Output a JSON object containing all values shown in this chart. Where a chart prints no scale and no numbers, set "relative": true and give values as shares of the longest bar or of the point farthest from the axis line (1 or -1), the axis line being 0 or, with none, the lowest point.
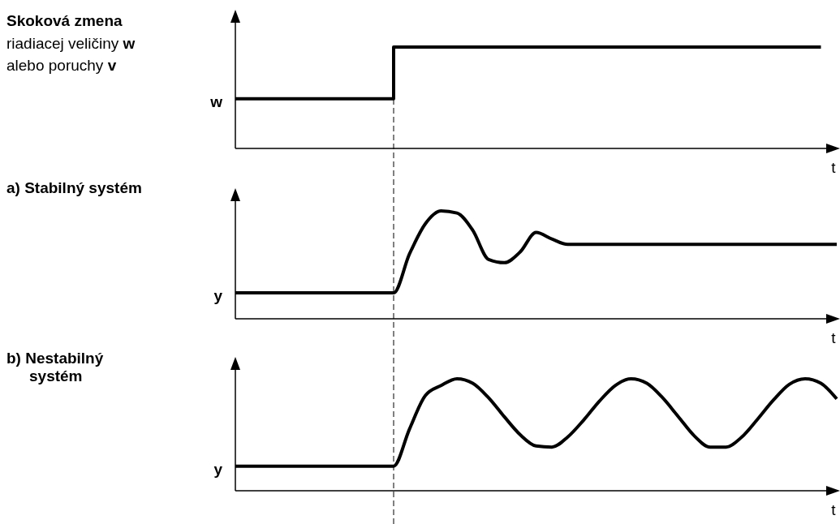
{
  "chart_data": [
    {
      "type": "step",
      "relative": true,
      "annotations": [
        "Skoková zmena"
      ],
      "subtitle": "riadiacej veličiny w alebo poruchy v",
      "ylabel": "w",
      "xlabel": "t",
      "categories": [
        null,
        null,
        null,
        null,
        null,
        null,
        null,
        null,
        null,
        null,
        null,
        null,
        null,
        null,
        null,
        null,
        null,
        null,
        null,
        null,
        null,
        null,
        null,
        null,
        null,
        null,
        null,
        null,
        null,
        null,
        null,
        null,
        null,
        null,
        null,
        null,
        null,
        null,
        null
      ],
      "series": [
        {
          "color": "#000000",
          "values": [
            0.49,
            0.49,
            0.49,
            0.49,
            0.49,
            0.49,
            0.49,
            0.49,
            0.49,
            0.49,
            0.49,
            1,
            1,
            1,
            1,
            1,
            1,
            1,
            1,
            1,
            1,
            1,
            1,
            1,
            1,
            1,
            1,
            1,
            1,
            1,
            1,
            1,
            1,
            1,
            1,
            1,
            1,
            1,
            null
          ]
        }
      ]
    },
    {
      "type": "line",
      "relative": true,
      "annotations": [
        "a)  Stabilný systém"
      ],
      "ylabel": "y",
      "xlabel": "t",
      "categories": [
        null,
        null,
        null,
        null,
        null,
        null,
        null,
        null,
        null,
        null,
        null,
        null,
        null,
        null,
        null,
        null,
        null,
        null,
        null,
        null,
        null,
        null,
        null,
        null,
        null,
        null,
        null,
        null,
        null,
        null,
        null,
        null,
        null,
        null,
        null,
        null,
        null,
        null,
        null
      ],
      "series": [
        {
          "color": "#000000",
          "values": [
            0.24,
            0.24,
            0.24,
            0.24,
            0.24,
            0.24,
            0.24,
            0.24,
            0.24,
            0.24,
            0.24,
            0.6,
            0.88,
            1,
            0.98,
            0.82,
            0.55,
            0.52,
            0.62,
            0.8,
            0.74,
            0.69,
            0.69,
            0.69,
            0.69,
            0.69,
            0.69,
            0.69,
            0.69,
            0.69,
            0.69,
            0.69,
            0.69,
            0.69,
            0.69,
            0.69,
            0.69,
            0.69,
            0.69
          ]
        }
      ]
    },
    {
      "type": "line",
      "relative": true,
      "annotations": [
        "b)  Nestabilný systém"
      ],
      "ylabel": "y",
      "xlabel": "t",
      "categories": [
        null,
        null,
        null,
        null,
        null,
        null,
        null,
        null,
        null,
        null,
        null,
        null,
        null,
        null,
        null,
        null,
        null,
        null,
        null,
        null,
        null,
        null,
        null,
        null,
        null,
        null,
        null,
        null,
        null,
        null,
        null,
        null,
        null,
        null,
        null,
        null,
        null,
        null,
        null
      ],
      "series": [
        {
          "color": "#000000",
          "values": [
            0.22,
            0.22,
            0.22,
            0.22,
            0.22,
            0.22,
            0.22,
            0.22,
            0.22,
            0.22,
            0.22,
            0.55,
            0.85,
            0.94,
            1,
            0.96,
            0.83,
            0.66,
            0.5,
            0.4,
            0.39,
            0.48,
            0.63,
            0.8,
            0.94,
            1,
            0.96,
            0.83,
            0.66,
            0.49,
            0.39,
            0.39,
            0.48,
            0.64,
            0.81,
            0.95,
            1,
            0.96,
            0.82
          ]
        }
      ]
    }
  ]
}
